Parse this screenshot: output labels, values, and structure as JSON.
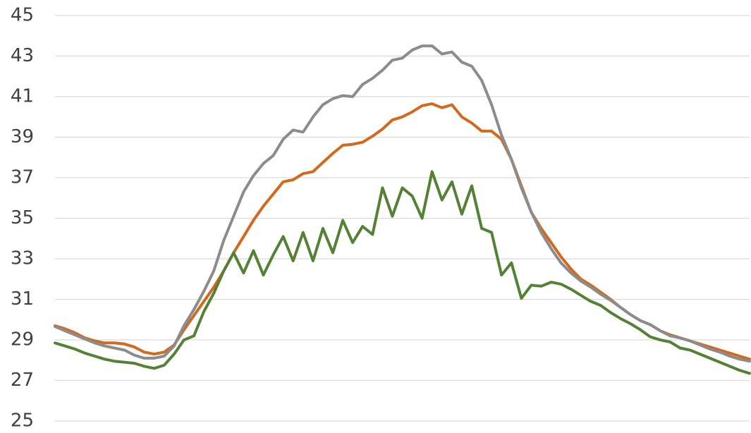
{
  "chart_data": {
    "type": "line",
    "categories": [
      null,
      null,
      null,
      null,
      null,
      null,
      null,
      null,
      null,
      null,
      null,
      null,
      null,
      null,
      null,
      null,
      null,
      null,
      null,
      null,
      null,
      null,
      null,
      null,
      null,
      null,
      null,
      null,
      null,
      null,
      null,
      null,
      null,
      null,
      null,
      null,
      null,
      null,
      null,
      null,
      null,
      null,
      null,
      null,
      null,
      null,
      null,
      null,
      null,
      null,
      null,
      null,
      null,
      null,
      null,
      null,
      null,
      null,
      null,
      null,
      null,
      null,
      null,
      null,
      null,
      null,
      null,
      null,
      null,
      null,
      null
    ],
    "series": [
      {
        "color": "#d4691e",
        "values": [
          29.7,
          29.55,
          29.35,
          29.1,
          28.95,
          28.85,
          28.85,
          28.8,
          28.65,
          28.4,
          28.3,
          28.4,
          28.75,
          29.5,
          30.2,
          30.9,
          31.6,
          32.4,
          33.3,
          34.1,
          34.9,
          35.6,
          36.2,
          36.8,
          36.9,
          37.2,
          37.3,
          37.75,
          38.2,
          38.6,
          38.65,
          38.75,
          39.05,
          39.4,
          39.85,
          40.0,
          40.25,
          40.55,
          40.65,
          40.45,
          40.6,
          40.0,
          39.7,
          39.3,
          39.3,
          38.9,
          37.9,
          36.6,
          35.3,
          34.5,
          33.8,
          33.1,
          32.5,
          32.0,
          31.7,
          31.35,
          31.0,
          30.6,
          30.25,
          29.95,
          29.75,
          29.45,
          29.25,
          29.1,
          28.95,
          28.8,
          28.65,
          28.5,
          28.35,
          28.2,
          28.05
        ]
      },
      {
        "color": "#8c8c8c",
        "values": [
          29.66,
          29.45,
          29.25,
          29.05,
          28.85,
          28.7,
          28.6,
          28.5,
          28.25,
          28.1,
          28.1,
          28.2,
          28.7,
          29.7,
          30.5,
          31.4,
          32.4,
          33.9,
          35.1,
          36.3,
          37.1,
          37.7,
          38.1,
          38.9,
          39.35,
          39.25,
          40.0,
          40.6,
          40.9,
          41.05,
          41.0,
          41.6,
          41.9,
          42.3,
          42.8,
          42.9,
          43.3,
          43.5,
          43.5,
          43.1,
          43.2,
          42.7,
          42.5,
          41.8,
          40.6,
          39.1,
          37.9,
          36.5,
          35.3,
          34.3,
          33.5,
          32.8,
          32.3,
          31.9,
          31.6,
          31.25,
          30.95,
          30.6,
          30.25,
          29.95,
          29.75,
          29.45,
          29.2,
          29.1,
          28.95,
          28.75,
          28.55,
          28.4,
          28.2,
          28.05,
          27.95
        ]
      },
      {
        "color": "#548235",
        "values": [
          28.85,
          28.7,
          28.55,
          28.35,
          28.2,
          28.05,
          27.95,
          27.9,
          27.85,
          27.7,
          27.6,
          27.75,
          28.3,
          29.0,
          29.2,
          30.4,
          31.3,
          32.4,
          33.3,
          32.3,
          33.4,
          32.2,
          33.2,
          34.1,
          32.9,
          34.3,
          32.9,
          34.5,
          33.3,
          34.9,
          33.8,
          34.6,
          34.2,
          36.5,
          35.1,
          36.5,
          36.1,
          35.0,
          37.3,
          35.9,
          36.8,
          35.2,
          36.6,
          34.5,
          34.3,
          32.2,
          32.8,
          31.05,
          31.7,
          31.65,
          31.85,
          31.75,
          31.5,
          31.2,
          30.9,
          30.7,
          30.35,
          30.05,
          29.8,
          29.5,
          29.15,
          29.0,
          28.9,
          28.6,
          28.5,
          28.3,
          28.1,
          27.9,
          27.7,
          27.5,
          27.35
        ]
      }
    ],
    "ylim": [
      25,
      45
    ],
    "yticks": [
      25,
      27,
      29,
      31,
      33,
      35,
      37,
      39,
      41,
      43,
      45
    ],
    "grid": true
  }
}
